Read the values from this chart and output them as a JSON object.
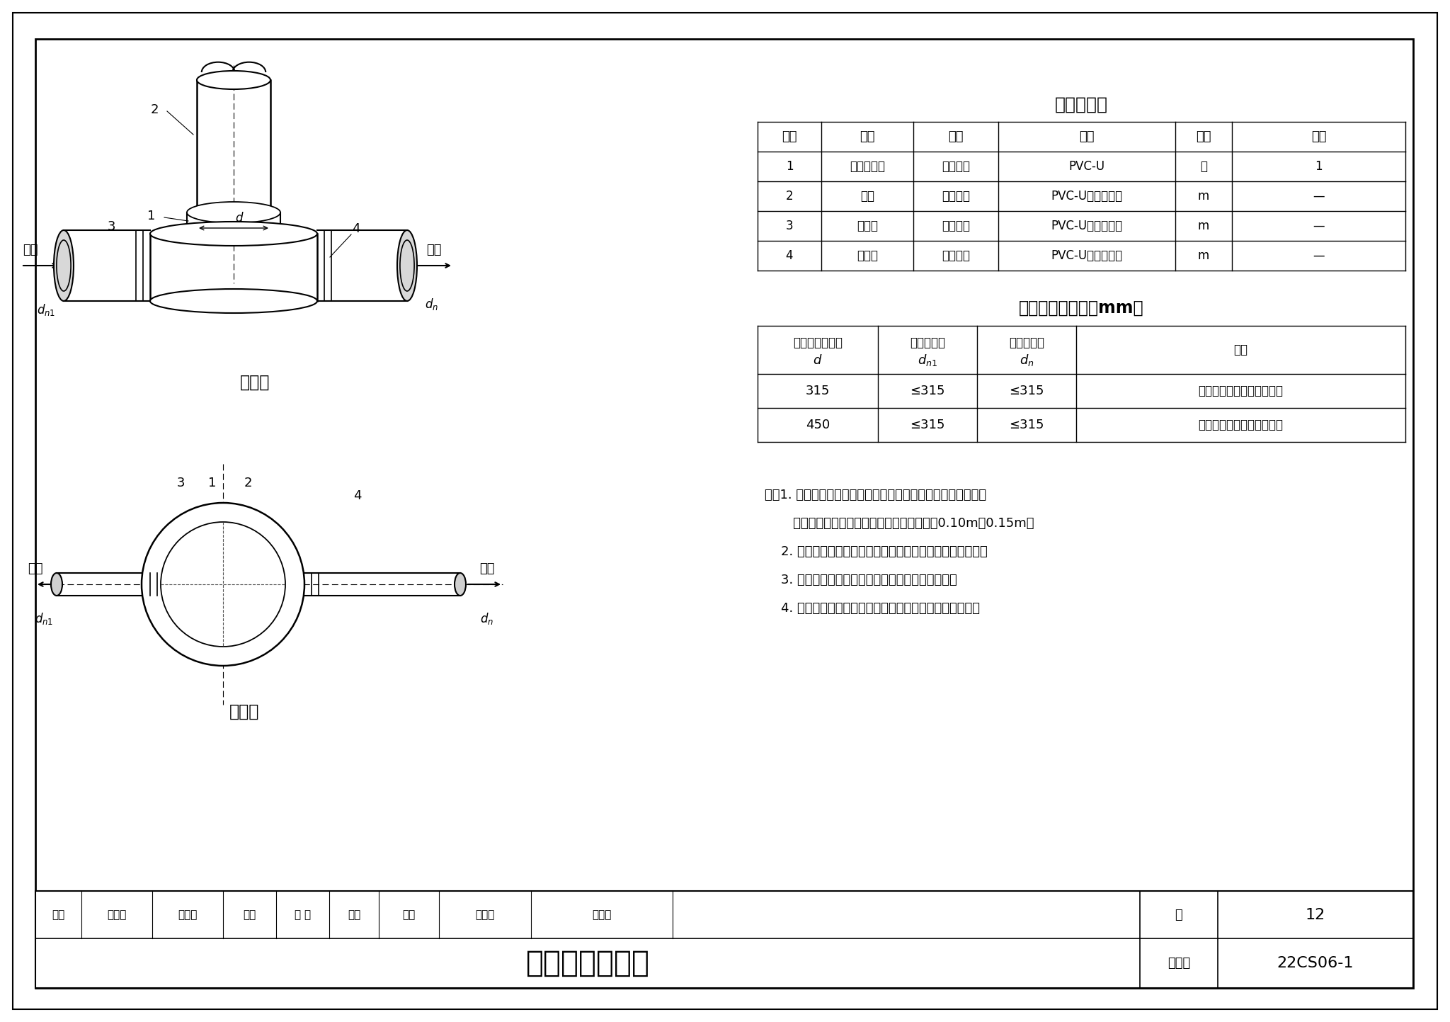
{
  "bg_color": "#ffffff",
  "border_color": "#000000",
  "title_main": "直壁检查井安装",
  "atlas_no_label": "图集号",
  "atlas_no": "22CS06-1",
  "page_label": "页",
  "page_no": "12",
  "materials_title": "主要材料表",
  "materials_headers": [
    "序号",
    "名称",
    "规格",
    "材料",
    "单位",
    "数量"
  ],
  "materials_rows": [
    [
      "1",
      "直通井底座",
      "详见设计",
      "PVC-U",
      "个",
      "1"
    ],
    [
      "2",
      "井筒",
      "详见设计",
      "PVC-U中空壁管材",
      "m",
      "—"
    ],
    [
      "3",
      "进水管",
      "详见设计",
      "PVC-U中空壁管材",
      "m",
      "—"
    ],
    [
      "4",
      "出水管",
      "详见设计",
      "PVC-U中空壁管材",
      "m",
      "—"
    ]
  ],
  "dims_title": "直壁井规格尺寸（mm）",
  "dims_rows": [
    [
      "315",
      "≤315",
      "≤315",
      "上、下游管道外径详见设计"
    ],
    [
      "450",
      "≤315",
      "≤315",
      "上、下游管道外径详见设计"
    ]
  ],
  "note_lines": [
    "注：1. 检查井井盖位于路面上时，井盖表面应与路面持平，井盖",
    "       位于绿化带上时，井盖表面应高于土层表面0.10m～0.15m。",
    "    2. 井筒插接时，应采用专用收紧工具，不得采用重锤敲击。",
    "    3. 分离式检查井井筒上口应设置防坠格板或内盖。",
    "    4. 井筒与井底座采用胶粘剂连接时，应采用专用胶粘剂。"
  ],
  "footer_items": [
    "审核",
    "王奎之",
    "王企之",
    "校对",
    "费 喆",
    "委话",
    "设计",
    "刘洪令",
    "刘煜义"
  ],
  "label_lm": "立面图",
  "label_pm": "平面图",
  "label_jinshui": "进水",
  "label_chushui": "出水"
}
